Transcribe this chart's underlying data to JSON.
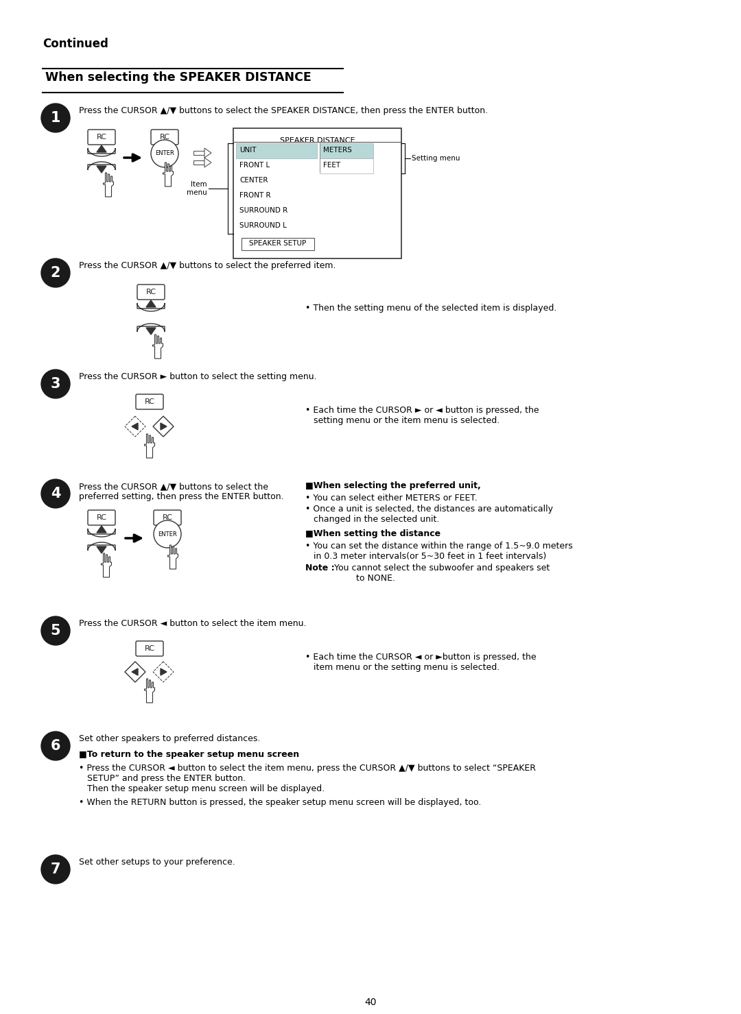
{
  "bg_color": "#ffffff",
  "page_number": "40",
  "continued_text": "Continued",
  "section_title": "When selecting the SPEAKER DISTANCE",
  "step1_text": "Press the CURSOR ▲/▼ buttons to select the SPEAKER DISTANCE, then press the ENTER button.",
  "step2_text": "Press the CURSOR ▲/▼ buttons to select the preferred item.",
  "step2_note": "• Then the setting menu of the selected item is displayed.",
  "step3_text": "Press the CURSOR ► button to select the setting menu.",
  "step3_note": "• Each time the CURSOR ► or ◄ button is pressed, the\n   setting menu or the item menu is selected.",
  "step4_text": "Press the CURSOR ▲/▼ buttons to select the\npreferred setting, then press the ENTER button.",
  "step4_note1_title": "■When selecting the preferred unit,",
  "step4_note1_b1": "• You can select either METERS or FEET.",
  "step4_note1_b2": "• Once a unit is selected, the distances are automatically\n   changed in the selected unit.",
  "step4_note2_title": "■When setting the distance",
  "step4_note2_b1": "• You can set the distance within the range of 1.5~9.0 meters\n   in 0.3 meter intervals(or 5~30 feet in 1 feet intervals)",
  "step4_note2_b2_bold": "Note :",
  "step4_note2_b2": " You cannot select the subwoofer and speakers set\n         to NONE.",
  "step5_text": "Press the CURSOR ◄ button to select the item menu.",
  "step5_note": "• Each time the CURSOR ◄ or ►button is pressed, the\n   item menu or the setting menu is selected.",
  "step6_text": "Set other speakers to preferred distances.",
  "step6_note_title": "■To return to the speaker setup menu screen",
  "step6_note_b1": "• Press the CURSOR ◄ button to select the item menu, press the CURSOR ▲/▼ buttons to select “SPEAKER\n   SETUP” and press the ENTER button.\n   Then the speaker setup menu screen will be displayed.",
  "step6_note_b2": "• When the RETURN button is pressed, the speaker setup menu screen will be displayed, too.",
  "step7_text": "Set other setups to your preference.",
  "menu_title": "SPEAKER DISTANCE",
  "menu_col1": [
    "UNIT",
    "FRONT L",
    "CENTER",
    "FRONT R",
    "SURROUND R",
    "SURROUND L"
  ],
  "menu_col2": [
    "METERS",
    "FEET"
  ],
  "menu_item_label": "Item\nmenu",
  "menu_setting_label": "Setting menu"
}
